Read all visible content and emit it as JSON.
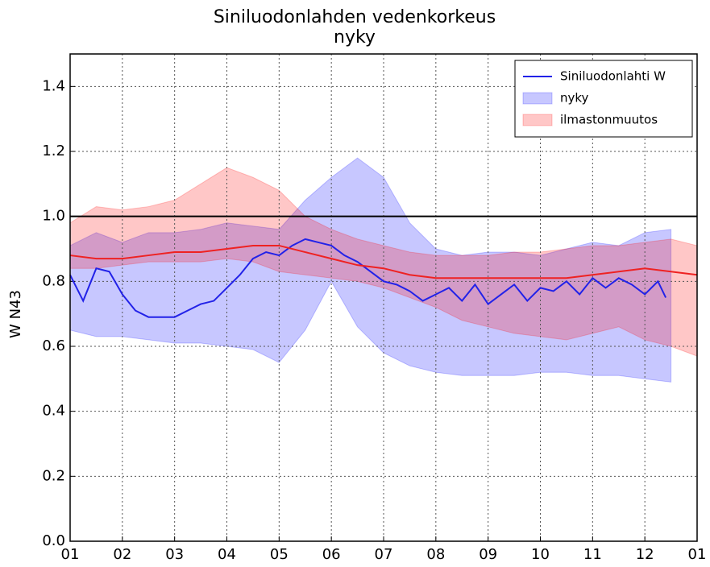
{
  "chart_data": {
    "type": "line",
    "title": "Siniluodonlahden vedenkorkeus",
    "subtitle": "nyky",
    "ylabel": "W N43",
    "xlim": [
      0,
      12
    ],
    "xticks": [
      {
        "value": 0,
        "label": "01"
      },
      {
        "value": 1,
        "label": "02"
      },
      {
        "value": 2,
        "label": "03"
      },
      {
        "value": 3,
        "label": "04"
      },
      {
        "value": 4,
        "label": "05"
      },
      {
        "value": 5,
        "label": "06"
      },
      {
        "value": 6,
        "label": "07"
      },
      {
        "value": 7,
        "label": "08"
      },
      {
        "value": 8,
        "label": "09"
      },
      {
        "value": 9,
        "label": "10"
      },
      {
        "value": 10,
        "label": "11"
      },
      {
        "value": 11,
        "label": "12"
      },
      {
        "value": 12,
        "label": "01"
      }
    ],
    "ylim": [
      0,
      1.5
    ],
    "yticks": [
      {
        "value": 0,
        "label": "0.0"
      },
      0.2,
      0.4,
      0.6,
      0.8,
      {
        "value": 1,
        "label": "1.0"
      },
      1.2,
      1.4
    ],
    "grid": true,
    "hline": 1.0,
    "legend": "upper right",
    "series": [
      {
        "name": "Siniluodonlahti W",
        "color": "#2222e8",
        "x": [
          0,
          0.25,
          0.5,
          0.75,
          1,
          1.25,
          1.5,
          1.75,
          2,
          2.25,
          2.5,
          2.75,
          3,
          3.25,
          3.5,
          3.75,
          4,
          4.25,
          4.5,
          4.75,
          5,
          5.25,
          5.5,
          5.75,
          6,
          6.25,
          6.5,
          6.75,
          7,
          7.25,
          7.5,
          7.75,
          8,
          8.25,
          8.5,
          8.75,
          9,
          9.25,
          9.5,
          9.75,
          10,
          10.25,
          10.5,
          10.75,
          11,
          11.25,
          11.4
        ],
        "values": [
          0.82,
          0.74,
          0.84,
          0.83,
          0.76,
          0.71,
          0.69,
          0.69,
          0.69,
          0.71,
          0.73,
          0.74,
          0.78,
          0.82,
          0.87,
          0.89,
          0.88,
          0.91,
          0.93,
          0.92,
          0.91,
          0.88,
          0.86,
          0.83,
          0.8,
          0.79,
          0.77,
          0.74,
          0.76,
          0.78,
          0.74,
          0.79,
          0.73,
          0.76,
          0.79,
          0.74,
          0.78,
          0.77,
          0.8,
          0.76,
          0.81,
          0.78,
          0.81,
          0.79,
          0.76,
          0.8,
          0.75
        ]
      },
      {
        "color": "#ee2222",
        "x": [
          0,
          0.5,
          1,
          1.5,
          2,
          2.5,
          3,
          3.5,
          4,
          4.5,
          5,
          5.5,
          6,
          6.5,
          7,
          7.5,
          8,
          8.5,
          9,
          9.5,
          10,
          10.5,
          11,
          11.5,
          12
        ],
        "values": [
          0.88,
          0.87,
          0.87,
          0.88,
          0.89,
          0.89,
          0.9,
          0.91,
          0.91,
          0.89,
          0.87,
          0.85,
          0.84,
          0.82,
          0.81,
          0.81,
          0.81,
          0.81,
          0.81,
          0.81,
          0.82,
          0.83,
          0.84,
          0.83,
          0.82
        ]
      }
    ],
    "bands": [
      {
        "name": "nyky",
        "color": "#0000ff",
        "alpha": 0.22,
        "x": [
          0,
          0.5,
          1,
          1.5,
          2,
          2.5,
          3,
          3.5,
          4,
          4.5,
          5,
          5.5,
          6,
          6.5,
          7,
          7.5,
          8,
          8.5,
          9,
          9.5,
          10,
          10.5,
          11,
          11.5
        ],
        "upper": [
          0.91,
          0.95,
          0.92,
          0.95,
          0.95,
          0.96,
          0.98,
          0.97,
          0.96,
          1.05,
          1.12,
          1.18,
          1.12,
          0.98,
          0.9,
          0.88,
          0.89,
          0.89,
          0.88,
          0.9,
          0.92,
          0.91,
          0.95,
          0.96
        ],
        "lower": [
          0.65,
          0.63,
          0.63,
          0.62,
          0.61,
          0.61,
          0.6,
          0.59,
          0.55,
          0.65,
          0.8,
          0.66,
          0.58,
          0.54,
          0.52,
          0.51,
          0.51,
          0.51,
          0.52,
          0.52,
          0.51,
          0.51,
          0.5,
          0.49
        ]
      },
      {
        "name": "ilmastonmuutos",
        "color": "#ff0000",
        "alpha": 0.22,
        "x": [
          0,
          0.5,
          1,
          1.5,
          2,
          2.5,
          3,
          3.5,
          4,
          4.5,
          5,
          5.5,
          6,
          6.5,
          7,
          7.5,
          8,
          8.5,
          9,
          9.5,
          10,
          10.5,
          11,
          11.5,
          12
        ],
        "upper": [
          0.98,
          1.03,
          1.02,
          1.03,
          1.05,
          1.1,
          1.15,
          1.12,
          1.08,
          1.0,
          0.96,
          0.93,
          0.91,
          0.89,
          0.88,
          0.88,
          0.88,
          0.89,
          0.89,
          0.9,
          0.91,
          0.91,
          0.92,
          0.93,
          0.91
        ],
        "lower": [
          0.84,
          0.84,
          0.85,
          0.86,
          0.86,
          0.86,
          0.87,
          0.86,
          0.83,
          0.82,
          0.81,
          0.8,
          0.78,
          0.75,
          0.72,
          0.68,
          0.66,
          0.64,
          0.63,
          0.62,
          0.64,
          0.66,
          0.62,
          0.6,
          0.57
        ]
      }
    ]
  }
}
